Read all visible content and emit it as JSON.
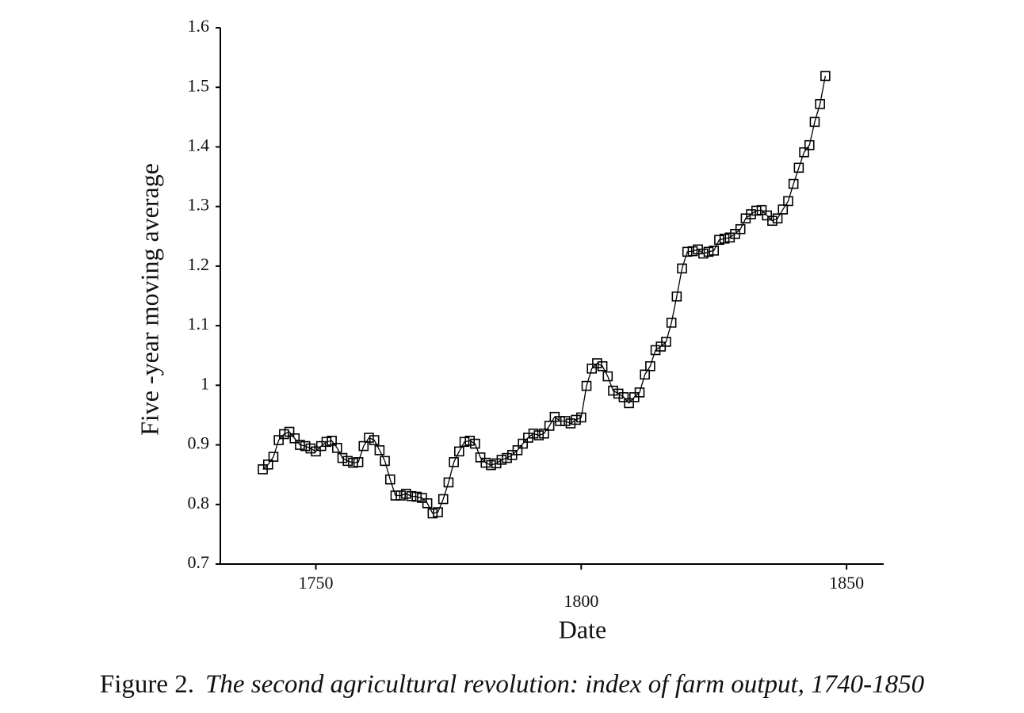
{
  "chart_data": {
    "type": "line",
    "marker": "square",
    "color": "#000000",
    "y_label": "Five -year moving average",
    "x_label": "Date",
    "figure_label": "Figure 2.",
    "caption": "The second agricultural revolution: index of farm output, 1740-1850",
    "xlim": [
      1732,
      1857
    ],
    "xticks": [
      1750,
      1800,
      1850
    ],
    "ylim": [
      0.7,
      1.6
    ],
    "yticks": [
      0.7,
      0.8,
      0.9,
      1,
      1.1,
      1.2,
      1.3,
      1.4,
      1.5,
      1.6
    ],
    "x": [
      1740,
      1741,
      1742,
      1743,
      1744,
      1745,
      1746,
      1747,
      1748,
      1749,
      1750,
      1751,
      1752,
      1753,
      1754,
      1755,
      1756,
      1757,
      1758,
      1759,
      1760,
      1761,
      1762,
      1763,
      1764,
      1765,
      1766,
      1767,
      1768,
      1769,
      1770,
      1771,
      1772,
      1773,
      1774,
      1775,
      1776,
      1777,
      1778,
      1779,
      1780,
      1781,
      1782,
      1783,
      1784,
      1785,
      1786,
      1787,
      1788,
      1789,
      1790,
      1791,
      1792,
      1793,
      1794,
      1795,
      1796,
      1797,
      1798,
      1799,
      1800,
      1801,
      1802,
      1803,
      1804,
      1805,
      1806,
      1807,
      1808,
      1809,
      1810,
      1811,
      1812,
      1813,
      1814,
      1815,
      1816,
      1817,
      1818,
      1819,
      1820,
      1821,
      1822,
      1823,
      1824,
      1825,
      1826,
      1827,
      1828,
      1829,
      1830,
      1831,
      1832,
      1833,
      1834,
      1835,
      1836,
      1837,
      1838,
      1839,
      1840,
      1841,
      1842,
      1843,
      1844,
      1845,
      1846
    ],
    "values": [
      0.859,
      0.867,
      0.88,
      0.908,
      0.918,
      0.922,
      0.911,
      0.9,
      0.898,
      0.894,
      0.889,
      0.898,
      0.905,
      0.907,
      0.895,
      0.878,
      0.873,
      0.87,
      0.871,
      0.898,
      0.912,
      0.908,
      0.891,
      0.873,
      0.842,
      0.815,
      0.815,
      0.818,
      0.814,
      0.813,
      0.811,
      0.802,
      0.785,
      0.787,
      0.809,
      0.837,
      0.871,
      0.889,
      0.905,
      0.907,
      0.902,
      0.879,
      0.87,
      0.866,
      0.869,
      0.875,
      0.878,
      0.883,
      0.891,
      0.902,
      0.912,
      0.919,
      0.916,
      0.919,
      0.932,
      0.947,
      0.94,
      0.94,
      0.936,
      0.942,
      0.946,
      0.999,
      1.028,
      1.037,
      1.032,
      1.015,
      0.991,
      0.986,
      0.98,
      0.97,
      0.98,
      0.988,
      1.018,
      1.032,
      1.059,
      1.065,
      1.073,
      1.105,
      1.149,
      1.196,
      1.224,
      1.225,
      1.228,
      1.221,
      1.224,
      1.226,
      1.244,
      1.246,
      1.248,
      1.254,
      1.262,
      1.28,
      1.287,
      1.293,
      1.294,
      1.285,
      1.276,
      1.28,
      1.295,
      1.309,
      1.338,
      1.365,
      1.391,
      1.403,
      1.442,
      1.472,
      1.519
    ]
  }
}
